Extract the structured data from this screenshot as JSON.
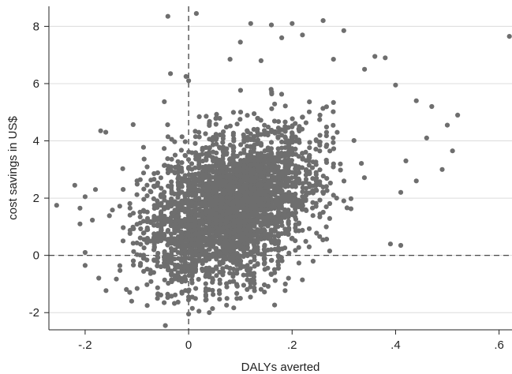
{
  "chart_data": {
    "type": "scatter",
    "title": "",
    "xlabel": "DALYs averted",
    "ylabel": "cost savings in US$",
    "xlim": [
      -0.27,
      0.625
    ],
    "ylim": [
      -2.6,
      8.7
    ],
    "x_ticks": [
      {
        "value": -0.2,
        "label": "-.2"
      },
      {
        "value": 0,
        "label": "0"
      },
      {
        "value": 0.2,
        "label": ".2"
      },
      {
        "value": 0.4,
        "label": ".4"
      },
      {
        "value": 0.6,
        "label": ".6"
      }
    ],
    "y_ticks": [
      {
        "value": -2,
        "label": "-2"
      },
      {
        "value": 0,
        "label": "0"
      },
      {
        "value": 2,
        "label": "2"
      },
      {
        "value": 4,
        "label": "4"
      },
      {
        "value": 6,
        "label": "6"
      },
      {
        "value": 8,
        "label": "8"
      }
    ],
    "grid": "horizontal",
    "reference_lines": {
      "x": 0,
      "y": 0,
      "style": "dashed"
    },
    "marker_color": "#6e6e6e",
    "points_note": "dense cloud of several thousand simulated points; generated centered near (0.08, 1.7)",
    "series": [
      {
        "cloud": {
          "count": 3200,
          "x_mean": 0.08,
          "x_sd": 0.08,
          "y_mean": 1.65,
          "y_sd": 1.35,
          "correlation": 0.35
        },
        "points": [
          [
            -0.04,
            8.35
          ],
          [
            0.015,
            8.45
          ],
          [
            0.12,
            8.1
          ],
          [
            0.16,
            8.05
          ],
          [
            0.2,
            8.1
          ],
          [
            0.26,
            8.2
          ],
          [
            0.22,
            7.7
          ],
          [
            0.3,
            7.85
          ],
          [
            0.62,
            7.65
          ],
          [
            0.1,
            7.45
          ],
          [
            0.18,
            7.6
          ],
          [
            -0.035,
            6.35
          ],
          [
            -0.005,
            6.25
          ],
          [
            0.0,
            6.1
          ],
          [
            0.08,
            6.85
          ],
          [
            0.14,
            6.8
          ],
          [
            0.28,
            6.85
          ],
          [
            0.36,
            6.95
          ],
          [
            0.38,
            6.9
          ],
          [
            0.34,
            6.5
          ],
          [
            0.4,
            5.95
          ],
          [
            0.47,
            5.2
          ],
          [
            0.44,
            5.4
          ],
          [
            0.52,
            4.9
          ],
          [
            0.5,
            4.55
          ],
          [
            0.51,
            3.65
          ],
          [
            0.49,
            3.0
          ],
          [
            0.46,
            4.1
          ],
          [
            0.42,
            3.3
          ],
          [
            0.41,
            2.2
          ],
          [
            0.44,
            2.6
          ],
          [
            0.39,
            0.4
          ],
          [
            0.41,
            0.35
          ],
          [
            -0.255,
            1.75
          ],
          [
            -0.22,
            2.45
          ],
          [
            -0.2,
            2.05
          ],
          [
            -0.21,
            1.1
          ],
          [
            -0.2,
            0.1
          ],
          [
            -0.2,
            -0.35
          ],
          [
            -0.21,
            1.65
          ],
          [
            -0.18,
            2.3
          ],
          [
            -0.17,
            4.35
          ],
          [
            -0.16,
            4.3
          ],
          [
            -0.045,
            -2.45
          ],
          [
            0.0,
            -2.05
          ],
          [
            0.04,
            -2.0
          ],
          [
            0.02,
            -1.95
          ],
          [
            0.1,
            -1.5
          ],
          [
            -0.11,
            -1.6
          ],
          [
            -0.08,
            -1.75
          ]
        ]
      }
    ]
  }
}
